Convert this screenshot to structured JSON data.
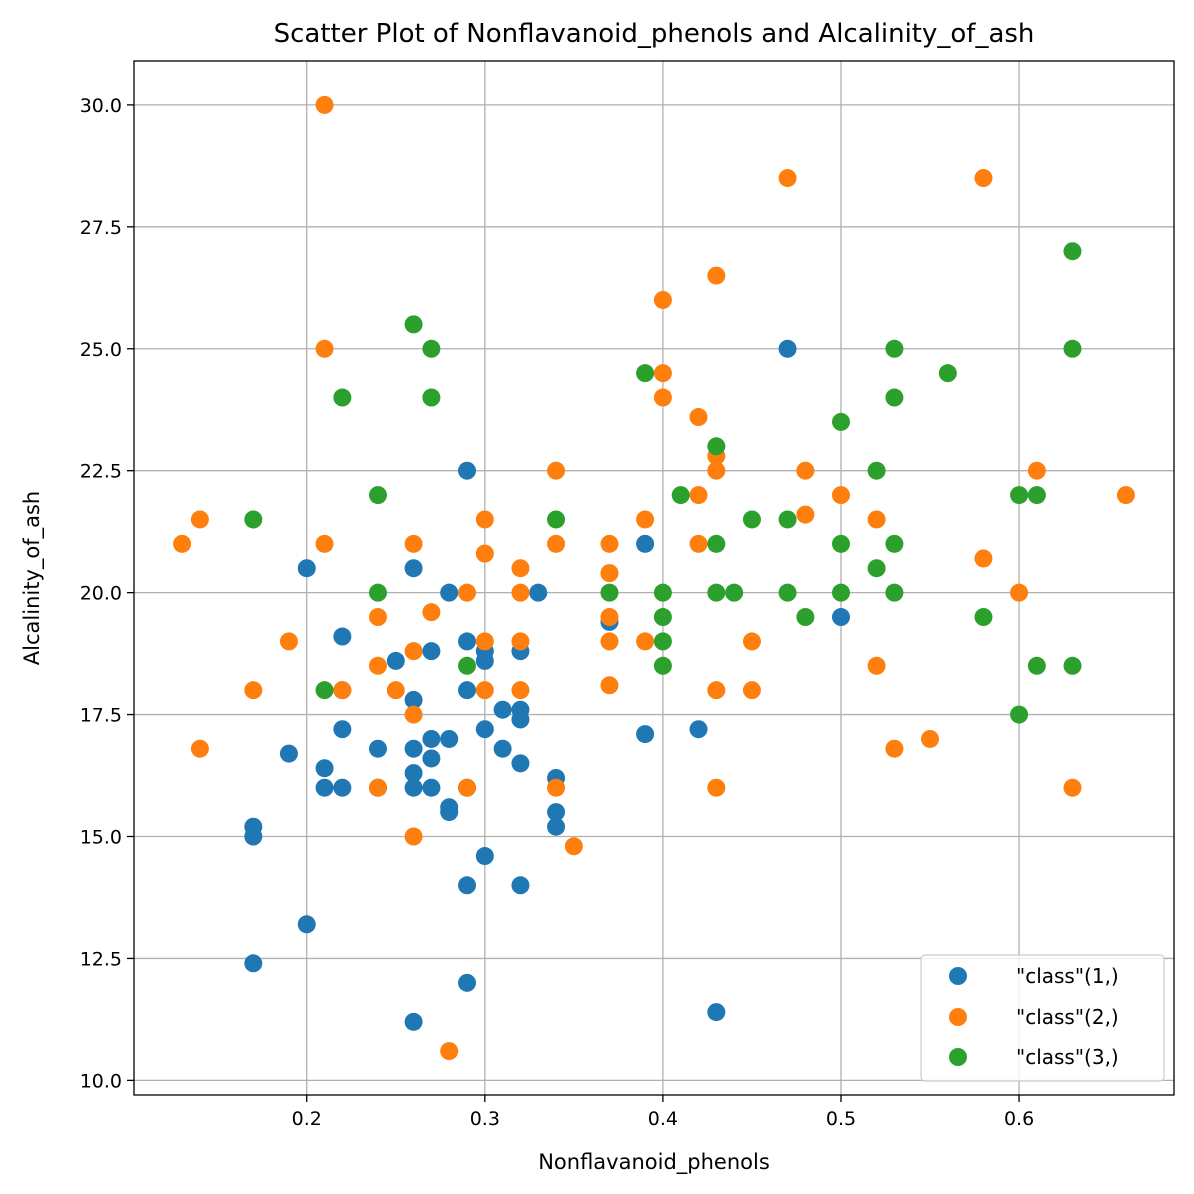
{
  "chart_data": {
    "type": "scatter",
    "title": "Scatter Plot of Nonflavanoid_phenols and Alcalinity_of_ash",
    "xlabel": "Nonflavanoid_phenols",
    "ylabel": "Alcalinity_of_ash",
    "xlim": [
      0.103,
      0.687
    ],
    "ylim": [
      9.7,
      30.9
    ],
    "xticks": [
      0.2,
      0.3,
      0.4,
      0.5,
      0.6
    ],
    "xtick_labels": [
      "0.2",
      "0.3",
      "0.4",
      "0.5",
      "0.6"
    ],
    "yticks": [
      10.0,
      12.5,
      15.0,
      17.5,
      20.0,
      22.5,
      25.0,
      27.5,
      30.0
    ],
    "ytick_labels": [
      "10.0",
      "12.5",
      "15.0",
      "17.5",
      "20.0",
      "22.5",
      "25.0",
      "27.5",
      "30.0"
    ],
    "grid": true,
    "legend_position": "lower-right",
    "series": [
      {
        "name": "\"class\"(1,)",
        "color": "#1f77b4",
        "points": [
          [
            0.17,
            15.2
          ],
          [
            0.17,
            15.0
          ],
          [
            0.17,
            12.4
          ],
          [
            0.19,
            16.7
          ],
          [
            0.2,
            20.5
          ],
          [
            0.2,
            13.2
          ],
          [
            0.21,
            16.4
          ],
          [
            0.21,
            16.0
          ],
          [
            0.22,
            19.1
          ],
          [
            0.22,
            18.0
          ],
          [
            0.22,
            17.2
          ],
          [
            0.22,
            16.0
          ],
          [
            0.24,
            16.8
          ],
          [
            0.24,
            16.0
          ],
          [
            0.25,
            18.6
          ],
          [
            0.26,
            20.5
          ],
          [
            0.26,
            17.8
          ],
          [
            0.26,
            16.8
          ],
          [
            0.26,
            16.3
          ],
          [
            0.26,
            16.0
          ],
          [
            0.26,
            11.2
          ],
          [
            0.27,
            18.8
          ],
          [
            0.27,
            17.0
          ],
          [
            0.27,
            16.6
          ],
          [
            0.27,
            16.0
          ],
          [
            0.28,
            20.0
          ],
          [
            0.28,
            17.0
          ],
          [
            0.28,
            15.6
          ],
          [
            0.28,
            15.5
          ],
          [
            0.29,
            22.5
          ],
          [
            0.29,
            19.0
          ],
          [
            0.29,
            18.0
          ],
          [
            0.29,
            16.0
          ],
          [
            0.29,
            14.0
          ],
          [
            0.29,
            12.0
          ],
          [
            0.3,
            18.8
          ],
          [
            0.3,
            18.6
          ],
          [
            0.3,
            17.2
          ],
          [
            0.3,
            14.6
          ],
          [
            0.31,
            17.6
          ],
          [
            0.31,
            16.8
          ],
          [
            0.32,
            18.8
          ],
          [
            0.32,
            17.6
          ],
          [
            0.32,
            17.4
          ],
          [
            0.32,
            16.5
          ],
          [
            0.32,
            14.0
          ],
          [
            0.33,
            20.0
          ],
          [
            0.34,
            16.2
          ],
          [
            0.34,
            15.5
          ],
          [
            0.34,
            15.2
          ],
          [
            0.37,
            19.4
          ],
          [
            0.39,
            21.0
          ],
          [
            0.39,
            17.1
          ],
          [
            0.42,
            17.2
          ],
          [
            0.43,
            11.4
          ],
          [
            0.47,
            25.0
          ],
          [
            0.5,
            19.5
          ]
        ]
      },
      {
        "name": "\"class\"(2,)",
        "color": "#ff7f0e",
        "points": [
          [
            0.13,
            21.0
          ],
          [
            0.14,
            21.5
          ],
          [
            0.14,
            16.8
          ],
          [
            0.17,
            18.0
          ],
          [
            0.19,
            19.0
          ],
          [
            0.21,
            30.0
          ],
          [
            0.21,
            25.0
          ],
          [
            0.21,
            21.0
          ],
          [
            0.22,
            18.0
          ],
          [
            0.24,
            19.5
          ],
          [
            0.24,
            18.5
          ],
          [
            0.24,
            16.0
          ],
          [
            0.25,
            18.0
          ],
          [
            0.26,
            21.0
          ],
          [
            0.26,
            18.8
          ],
          [
            0.26,
            17.5
          ],
          [
            0.26,
            15.0
          ],
          [
            0.27,
            19.6
          ],
          [
            0.28,
            10.6
          ],
          [
            0.29,
            20.0
          ],
          [
            0.29,
            16.0
          ],
          [
            0.3,
            21.5
          ],
          [
            0.3,
            20.8
          ],
          [
            0.3,
            19.0
          ],
          [
            0.3,
            18.0
          ],
          [
            0.32,
            20.5
          ],
          [
            0.32,
            20.0
          ],
          [
            0.32,
            19.0
          ],
          [
            0.32,
            18.0
          ],
          [
            0.34,
            22.5
          ],
          [
            0.34,
            21.0
          ],
          [
            0.34,
            16.0
          ],
          [
            0.35,
            14.8
          ],
          [
            0.37,
            21.0
          ],
          [
            0.37,
            20.4
          ],
          [
            0.37,
            19.5
          ],
          [
            0.37,
            19.0
          ],
          [
            0.37,
            18.1
          ],
          [
            0.39,
            21.5
          ],
          [
            0.39,
            19.0
          ],
          [
            0.4,
            26.0
          ],
          [
            0.4,
            24.5
          ],
          [
            0.4,
            24.0
          ],
          [
            0.42,
            23.6
          ],
          [
            0.42,
            22.0
          ],
          [
            0.42,
            21.0
          ],
          [
            0.43,
            26.5
          ],
          [
            0.43,
            22.8
          ],
          [
            0.43,
            22.5
          ],
          [
            0.43,
            18.0
          ],
          [
            0.43,
            16.0
          ],
          [
            0.45,
            19.0
          ],
          [
            0.45,
            18.0
          ],
          [
            0.47,
            28.5
          ],
          [
            0.48,
            22.5
          ],
          [
            0.48,
            21.6
          ],
          [
            0.5,
            22.0
          ],
          [
            0.52,
            21.5
          ],
          [
            0.52,
            18.5
          ],
          [
            0.53,
            16.8
          ],
          [
            0.55,
            17.0
          ],
          [
            0.58,
            28.5
          ],
          [
            0.58,
            20.7
          ],
          [
            0.6,
            20.0
          ],
          [
            0.61,
            22.5
          ],
          [
            0.63,
            16.0
          ],
          [
            0.66,
            22.0
          ]
        ]
      },
      {
        "name": "\"class\"(3,)",
        "color": "#2ca02c",
        "points": [
          [
            0.17,
            21.5
          ],
          [
            0.21,
            18.0
          ],
          [
            0.22,
            24.0
          ],
          [
            0.24,
            22.0
          ],
          [
            0.24,
            20.0
          ],
          [
            0.26,
            25.5
          ],
          [
            0.27,
            25.0
          ],
          [
            0.27,
            24.0
          ],
          [
            0.29,
            18.5
          ],
          [
            0.34,
            21.5
          ],
          [
            0.37,
            20.0
          ],
          [
            0.39,
            24.5
          ],
          [
            0.4,
            20.0
          ],
          [
            0.4,
            19.5
          ],
          [
            0.4,
            19.0
          ],
          [
            0.4,
            18.5
          ],
          [
            0.41,
            22.0
          ],
          [
            0.43,
            23.0
          ],
          [
            0.43,
            21.0
          ],
          [
            0.43,
            20.0
          ],
          [
            0.44,
            20.0
          ],
          [
            0.45,
            21.5
          ],
          [
            0.47,
            21.5
          ],
          [
            0.47,
            20.0
          ],
          [
            0.48,
            19.5
          ],
          [
            0.5,
            23.5
          ],
          [
            0.5,
            21.0
          ],
          [
            0.5,
            20.0
          ],
          [
            0.52,
            22.5
          ],
          [
            0.52,
            20.5
          ],
          [
            0.53,
            25.0
          ],
          [
            0.53,
            24.0
          ],
          [
            0.53,
            21.0
          ],
          [
            0.53,
            20.0
          ],
          [
            0.56,
            24.5
          ],
          [
            0.58,
            19.5
          ],
          [
            0.6,
            22.0
          ],
          [
            0.6,
            17.5
          ],
          [
            0.61,
            22.0
          ],
          [
            0.61,
            18.5
          ],
          [
            0.63,
            27.0
          ],
          [
            0.63,
            25.0
          ],
          [
            0.63,
            18.5
          ]
        ]
      }
    ]
  }
}
